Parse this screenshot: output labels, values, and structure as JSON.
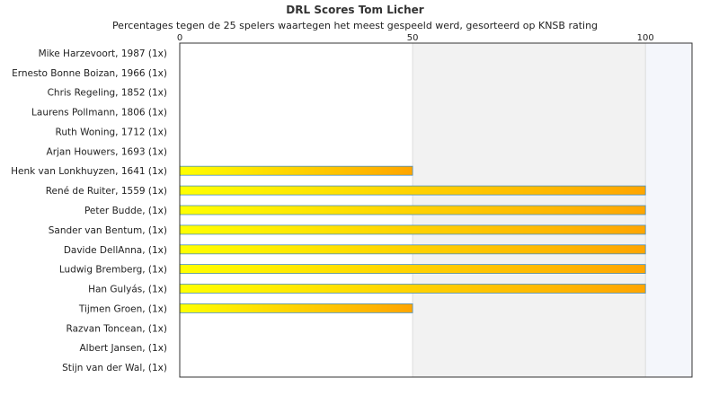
{
  "chart_data": {
    "type": "bar",
    "orientation": "horizontal",
    "title": "DRL Scores Tom Licher",
    "subtitle": "Percentages tegen de 25 spelers waartegen het meest gespeeld werd, gesorteerd op KNSB rating",
    "xlabel": "",
    "ylabel": "",
    "xlim": [
      0,
      110
    ],
    "ticks": [
      "0",
      "50",
      "100"
    ],
    "tick_values": [
      0,
      50,
      100
    ],
    "grid": true,
    "categories": [
      "Mike Harzevoort, 1987 (1x)",
      "Ernesto Bonne Boizan, 1966 (1x)",
      "Chris Regeling, 1852 (1x)",
      "Laurens Pollmann, 1806 (1x)",
      "Ruth Woning, 1712 (1x)",
      "Arjan Houwers, 1693 (1x)",
      "Henk van Lonkhuyzen, 1641 (1x)",
      "René de Ruiter, 1559 (1x)",
      "Peter Budde,  (1x)",
      "Sander van Bentum,  (1x)",
      "Davide DellAnna,  (1x)",
      "Ludwig Bremberg,  (1x)",
      "Han Gulyás,  (1x)",
      "Tijmen Groen,  (1x)",
      "Razvan Toncean,  (1x)",
      "Albert Jansen,  (1x)",
      "Stijn van der Wal,  (1x)"
    ],
    "values": [
      0,
      0,
      0,
      0,
      0,
      0,
      50,
      100,
      100,
      100,
      100,
      100,
      100,
      50,
      0,
      0,
      0
    ],
    "colors": {
      "bar_start": "#ffff00",
      "bar_end": "#ffa500",
      "bar_border": "#4a90c0",
      "band": "#f2f2f2",
      "band_far": "#f4f6fb",
      "grid": "#dddddd",
      "axis": "#333333"
    }
  }
}
